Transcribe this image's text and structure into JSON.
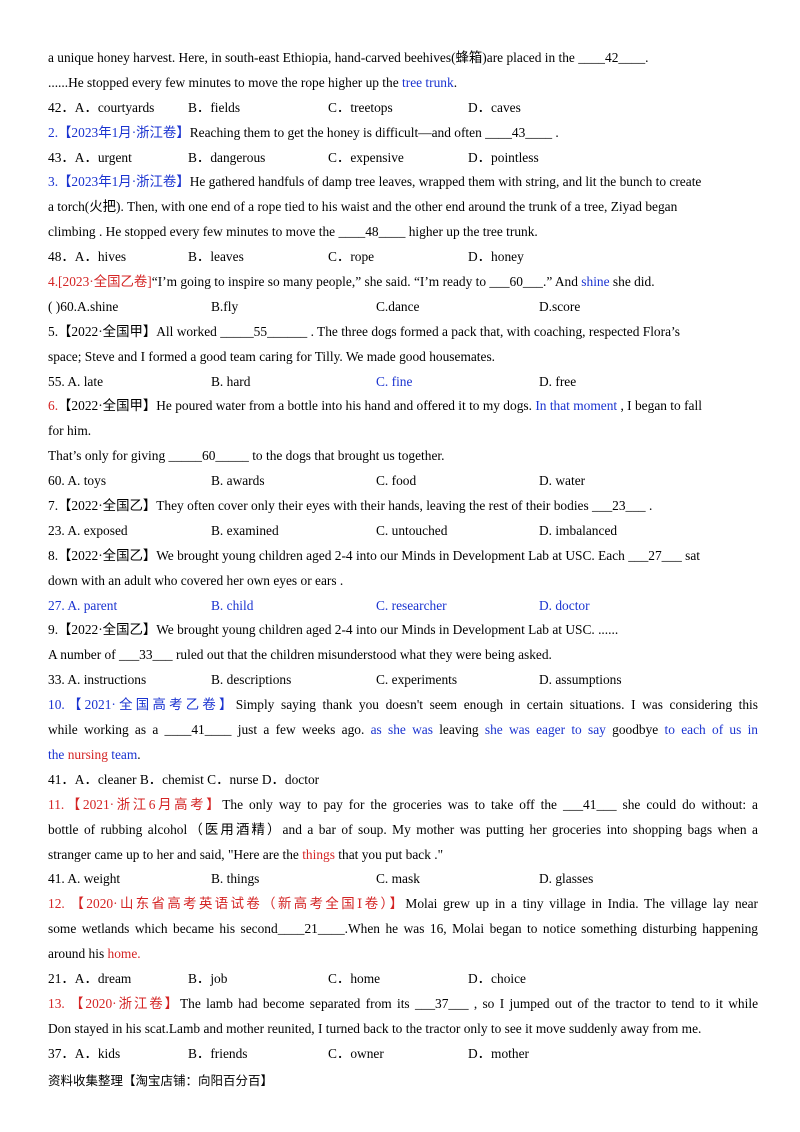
{
  "lines": [
    {
      "segs": [
        {
          "t": "a unique honey harvest. Here, in south-east Ethiopia, hand-carved beehives(蜂箱)are placed in the  "
        },
        {
          "t": "____42____",
          "u": 1
        },
        {
          "t": "."
        }
      ]
    },
    {
      "segs": [
        {
          "t": "......He stopped every few minutes to move the  rope  higher up the  "
        },
        {
          "t": "tree trunk",
          "c": "blue"
        },
        {
          "t": "."
        }
      ]
    },
    {
      "opts": [
        "42．A．courtyards",
        "B．fields",
        "C．treetops",
        "D．caves"
      ]
    },
    {
      "segs": [
        {
          "t": "2.【2023年1月·浙江卷】",
          "c": "blue"
        },
        {
          "t": "Reaching them to get the honey is difficult—and often  "
        },
        {
          "t": "____43____",
          "u": 1
        },
        {
          "t": "  ."
        }
      ]
    },
    {
      "opts": [
        "43．A．urgent",
        "B．dangerous",
        "C．expensive",
        "D．pointless"
      ]
    },
    {
      "segs": [
        {
          "t": "3.【2023年1月·浙江卷】",
          "c": "blue"
        },
        {
          "t": "He gathered handfuls of damp tree leaves, wrapped them with string, and lit the bunch to create"
        }
      ]
    },
    {
      "segs": [
        {
          "t": "a torch(火把). Then, with one end of a rope tied to his waist and the other end around the trunk of a tree, Ziyad began"
        }
      ]
    },
    {
      "segs": [
        {
          "t": "climbing . He stopped every few minutes to move the  "
        },
        {
          "t": "____48____",
          "u": 1
        },
        {
          "t": "  higher up the tree trunk."
        }
      ]
    },
    {
      "opts": [
        "48．A．hives",
        "B．leaves",
        "C．rope",
        "D．honey"
      ]
    },
    {
      "segs": [
        {
          "t": "4.[2023·全国乙卷]",
          "c": "red"
        },
        {
          "t": "“I’m going to inspire so many people,” she said. “I’m ready to  "
        },
        {
          "t": "___60___",
          "u": 1
        },
        {
          "t": ".” And  "
        },
        {
          "t": "shine",
          "c": "blue"
        },
        {
          "t": "  she did."
        }
      ]
    },
    {
      "opts": [
        "(    )60.A.shine",
        "B.fly",
        "C.dance",
        "D.score"
      ]
    },
    {
      "segs": [
        {
          "t": "5.【2022·全国甲】All worked  "
        },
        {
          "t": "_____55______",
          "u": 1
        },
        {
          "t": "  . The three dogs formed a pack that, with coaching, respected Flora’s"
        }
      ]
    },
    {
      "segs": [
        {
          "t": "space; Steve and I formed a good team caring for Tilly. We made good housemates."
        }
      ]
    },
    {
      "opts": [
        "55. A. late",
        "B. hard",
        "C. fine",
        "D. free"
      ],
      "optc": [
        null,
        null,
        "blue",
        null
      ]
    },
    {
      "segs": [
        {
          "t": "6.",
          "c": "red"
        },
        {
          "t": "【2022·全国甲】He poured water from a bottle into his hand and offered it to my dogs.  "
        },
        {
          "t": "In that moment",
          "c": "blue"
        },
        {
          "t": "  , I began to fall"
        }
      ]
    },
    {
      "segs": [
        {
          "t": "for him."
        }
      ]
    },
    {
      "segs": [
        {
          "t": "That’s only for giving  "
        },
        {
          "t": "_____60_____",
          "u": 1
        },
        {
          "t": "  to the dogs that brought us together."
        }
      ]
    },
    {
      "opts": [
        "60. A. toys",
        "B. awards",
        "C. food",
        "D. water"
      ]
    },
    {
      "segs": [
        {
          "t": "7.【2022·全国乙】They often cover only their eyes with their hands, leaving the rest of their bodies  "
        },
        {
          "t": "___23___",
          "u": 1
        },
        {
          "t": "  ."
        }
      ]
    },
    {
      "opts": [
        "23. A. exposed",
        "B. examined",
        "C. untouched",
        "D. imbalanced"
      ]
    },
    {
      "segs": [
        {
          "t": "8.【2022·全国乙】We brought young children aged 2-4 into our Minds in Development Lab at USC. Each  "
        },
        {
          "t": "___27___",
          "u": 1
        },
        {
          "t": "  sat"
        }
      ]
    },
    {
      "segs": [
        {
          "t": "down with an adult who covered her own eyes or ears ."
        }
      ]
    },
    {
      "opts": [
        "27. A. parent",
        "B. child",
        "C. researcher",
        "D. doctor"
      ],
      "optc": [
        "blue",
        "blue",
        "blue",
        "blue"
      ]
    },
    {
      "segs": [
        {
          "t": "9.【2022·全国乙】We brought young children aged 2-4 into our Minds in Development Lab at USC.   ......"
        }
      ]
    },
    {
      "segs": [
        {
          "t": "A number of  "
        },
        {
          "t": "___33___",
          "u": 1
        },
        {
          "t": "  ruled out that the children misunderstood what they were being asked."
        }
      ]
    },
    {
      "opts": [
        "33. A. instructions",
        "B. descriptions",
        "C. experiments",
        "D. assumptions"
      ]
    },
    {
      "segs": [
        {
          "t": "10.【2021·全国高考乙卷】",
          "c": "blue"
        },
        {
          "t": "Simply saying thank you doesn't seem enough in certain situations. I was considering this"
        }
      ],
      "just": 1
    },
    {
      "segs": [
        {
          "t": "while working as a  "
        },
        {
          "t": "____41____",
          "u": 1
        },
        {
          "t": "  just a few weeks ago.  "
        },
        {
          "t": "as she was",
          "c": "blue"
        },
        {
          "t": "  leaving  "
        },
        {
          "t": "she was eager to say",
          "c": "blue"
        },
        {
          "t": "  goodbye  "
        },
        {
          "t": "to each of us in",
          "c": "blue"
        }
      ],
      "just": 1
    },
    {
      "segs": [
        {
          "t": "the",
          "c": "blue"
        },
        {
          "t": "  "
        },
        {
          "t": "nursing",
          "c": "red"
        },
        {
          "t": "  "
        },
        {
          "t": "team",
          "c": "blue"
        },
        {
          "t": "."
        }
      ]
    },
    {
      "segs": [
        {
          "t": "41．A．cleaner     B．chemist    C．nurse D．doctor"
        }
      ]
    },
    {
      "segs": [
        {
          "t": "11.【2021·浙江6月高考】",
          "c": "red"
        },
        {
          "t": "The only  way  to pay for the groceries was to take off the  "
        },
        {
          "t": "___41___",
          "u": 1
        },
        {
          "t": "  she could do without: a"
        }
      ],
      "just": 1
    },
    {
      "segs": [
        {
          "t": "bottle of rubbing alcohol（医用酒精）and a bar of soup. My mother was putting her groceries into shopping bags when a"
        }
      ],
      "just": 1
    },
    {
      "segs": [
        {
          "t": "stranger  came up to her and said, \"Here are the  "
        },
        {
          "t": "things",
          "c": "red"
        },
        {
          "t": "  that you  put back  .\""
        }
      ]
    },
    {
      "opts": [
        "41. A. weight",
        "B. things",
        "C. mask",
        "D. glasses"
      ],
      "optpos": "b"
    },
    {
      "segs": [
        {
          "t": "12.  【2020·山东省高考英语试卷（新高考全国Ⅰ卷）】",
          "c": "red"
        },
        {
          "t": "Molai grew up in a tiny village in India. The village lay near"
        }
      ],
      "just": 1
    },
    {
      "segs": [
        {
          "t": "some wetlands which became his second"
        },
        {
          "t": "____21____",
          "u": 1
        },
        {
          "t": ".When he was 16, Molai began to notice something disturbing happening"
        }
      ],
      "just": 1
    },
    {
      "segs": [
        {
          "t": "around his  "
        },
        {
          "t": "home.",
          "c": "red"
        }
      ]
    },
    {
      "opts": [
        "21．A．dream",
        "B．job",
        "C．home",
        "D．choice"
      ]
    },
    {
      "segs": [
        {
          "t": "13.  【2020·浙江卷】",
          "c": "red"
        },
        {
          "t": "The lamb had become separated from its  "
        },
        {
          "t": "___37___",
          "u": 1
        },
        {
          "t": "  , so I jumped out of the tractor to tend to it while"
        }
      ],
      "just": 1
    },
    {
      "segs": [
        {
          "t": "Don stayed in his scat.Lamb and mother reunited, I turned back to the tractor only to see it move suddenly away from me."
        }
      ]
    },
    {
      "opts": [
        "37．A．kids",
        "B．friends",
        "C．owner",
        "D．mother"
      ]
    }
  ],
  "footer": "资料收集整理【淘宝店铺：向阳百分百】"
}
